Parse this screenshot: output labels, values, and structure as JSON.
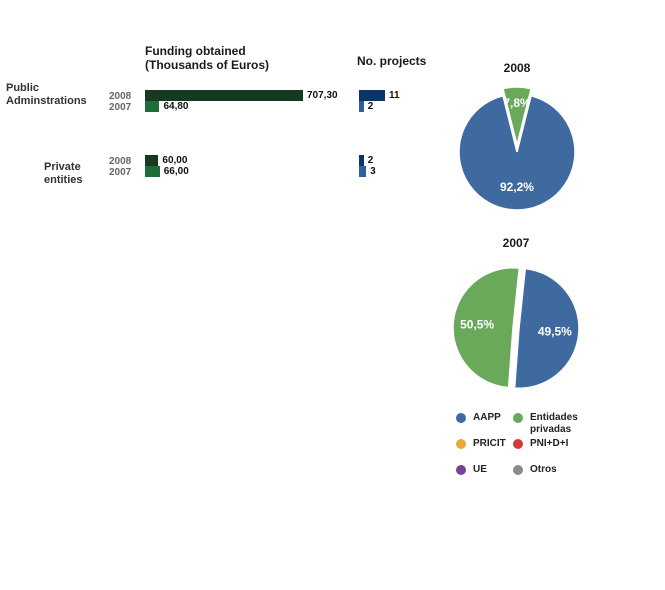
{
  "headers": {
    "funding": "Funding obtained\n(Thousands of Euros)",
    "projects": "No. projects"
  },
  "chart_data": [
    {
      "type": "bar",
      "orientation": "horizontal",
      "title": "Funding obtained (Thousands of Euros)",
      "groups": [
        {
          "label": "Public Adminstrations",
          "rows": [
            {
              "year": "2008",
              "value": 707.3,
              "label": "707,30"
            },
            {
              "year": "2007",
              "value": 64.8,
              "label": "64,80"
            }
          ]
        },
        {
          "label": "Private entities",
          "rows": [
            {
              "year": "2008",
              "value": 60.0,
              "label": "60,00"
            },
            {
              "year": "2007",
              "value": 66.0,
              "label": "66,00"
            }
          ]
        }
      ],
      "colors": {
        "2008": "#163a1f",
        "2007": "#1f6b3a"
      }
    },
    {
      "type": "bar",
      "orientation": "horizontal",
      "title": "No. projects",
      "groups": [
        {
          "label": "Public Adminstrations",
          "rows": [
            {
              "year": "2008",
              "value": 11,
              "label": "11"
            },
            {
              "year": "2007",
              "value": 2,
              "label": "2"
            }
          ]
        },
        {
          "label": "Private entities",
          "rows": [
            {
              "year": "2008",
              "value": 2,
              "label": "2"
            },
            {
              "year": "2007",
              "value": 3,
              "label": "3"
            }
          ]
        }
      ],
      "colors": {
        "2008": "#0d3466",
        "2007": "#2f5f9c"
      }
    },
    {
      "type": "pie",
      "title": "2008",
      "slices": [
        {
          "name": "AAPP",
          "value": 92.2,
          "label": "92,2%",
          "color": "#3f6aa0"
        },
        {
          "name": "Entidades privadas",
          "value": 7.8,
          "label": "7,8%",
          "color": "#6aa85a"
        }
      ]
    },
    {
      "type": "pie",
      "title": "2007",
      "slices": [
        {
          "name": "AAPP",
          "value": 49.5,
          "label": "49,5%",
          "color": "#3f6aa0"
        },
        {
          "name": "Entidades privadas",
          "value": 50.5,
          "label": "50,5%",
          "color": "#6aa85a"
        }
      ]
    }
  ],
  "legend": [
    {
      "label": "AAPP",
      "color": "#3f6aa0"
    },
    {
      "label": "Entidades\nprivadas",
      "color": "#6aa85a"
    },
    {
      "label": "PRICIT",
      "color": "#e8a93a"
    },
    {
      "label": "PNI+D+I",
      "color": "#d23a3a"
    },
    {
      "label": "UE",
      "color": "#7b3f93"
    },
    {
      "label": "Otros",
      "color": "#8a8a8a"
    }
  ]
}
